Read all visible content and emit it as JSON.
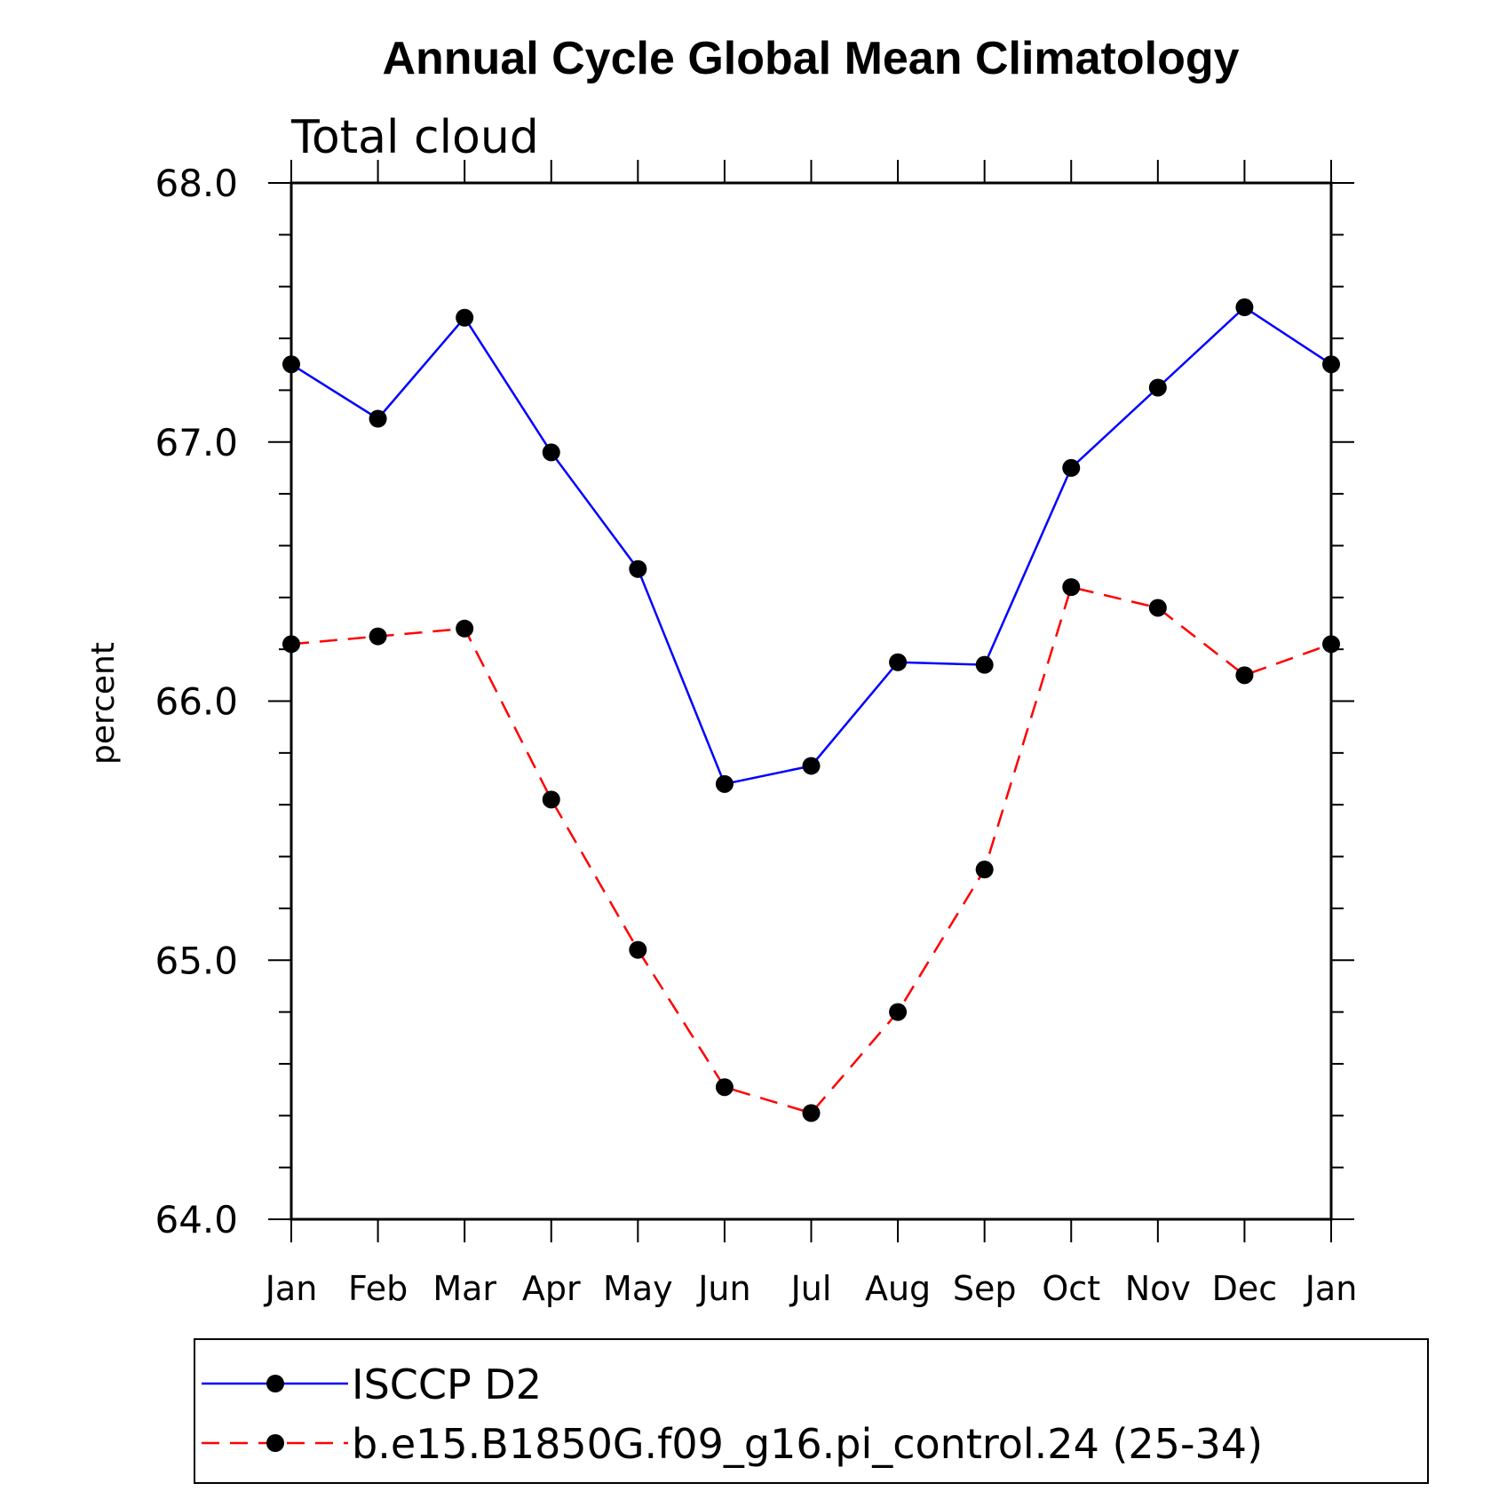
{
  "chart_data": {
    "type": "line",
    "title": "Annual Cycle Global Mean Climatology",
    "subtitle": "Total cloud",
    "ylabel": "percent",
    "xlabel": "",
    "ylim": [
      64.0,
      68.0
    ],
    "yticks": [
      "64.0",
      "65.0",
      "66.0",
      "67.0",
      "68.0"
    ],
    "categories": [
      "Jan",
      "Feb",
      "Mar",
      "Apr",
      "May",
      "Jun",
      "Jul",
      "Aug",
      "Sep",
      "Oct",
      "Nov",
      "Dec",
      "Jan"
    ],
    "grid": false,
    "legend_placement": "bottom",
    "series": [
      {
        "name": "ISCCP D2",
        "color": "#0000ff",
        "dash": "solid",
        "marker": "filled-circle",
        "values": [
          67.3,
          67.09,
          67.48,
          66.96,
          66.51,
          65.68,
          65.75,
          66.15,
          66.14,
          66.9,
          67.21,
          67.52,
          67.3
        ]
      },
      {
        "name": "b.e15.B1850G.f09_g16.pi_control.24 (25-34)",
        "color": "#ff0000",
        "dash": "dashed",
        "marker": "filled-circle",
        "values": [
          66.22,
          66.25,
          66.28,
          65.62,
          65.04,
          64.51,
          64.41,
          64.8,
          65.35,
          66.44,
          66.36,
          66.1,
          66.22
        ]
      }
    ]
  }
}
